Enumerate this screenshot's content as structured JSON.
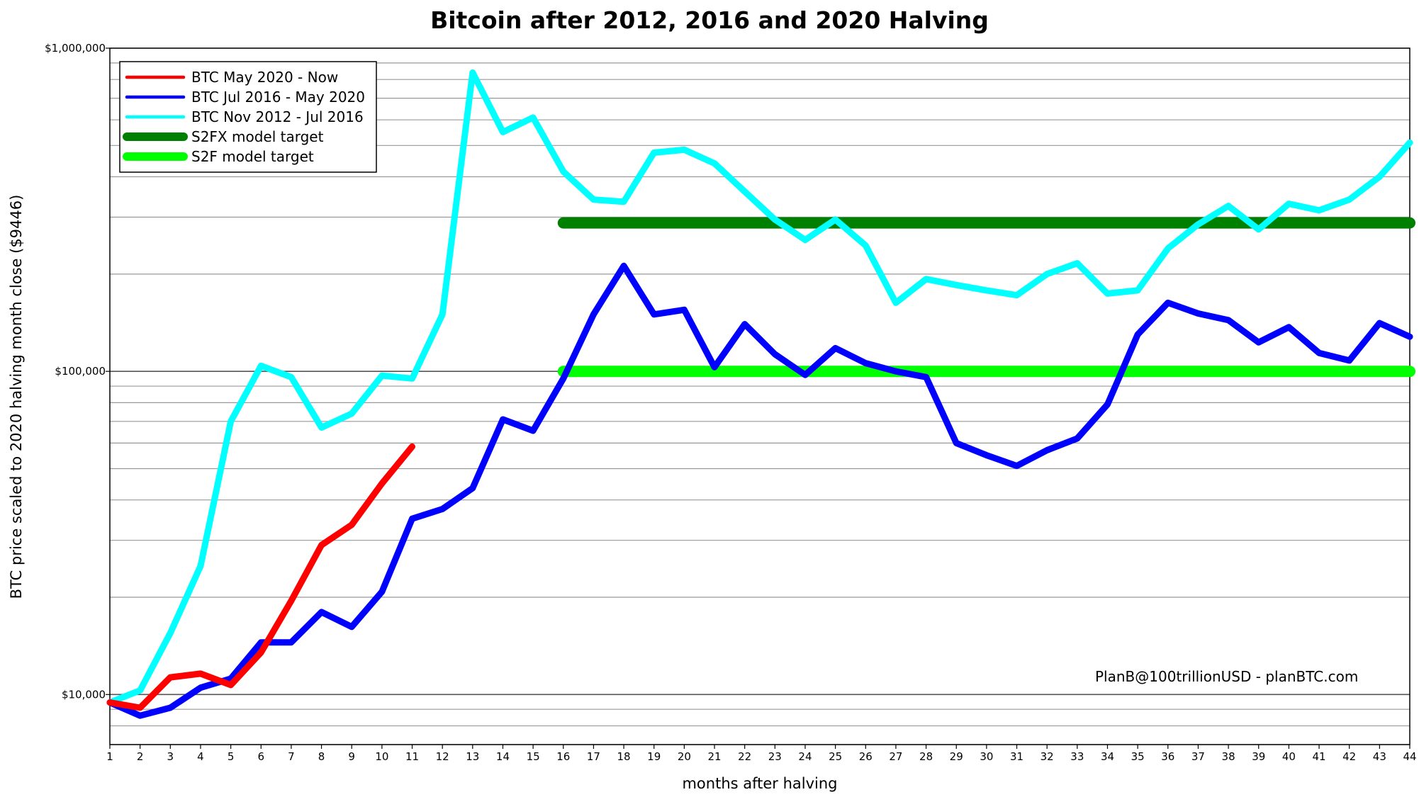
{
  "chart_data": {
    "type": "line",
    "title": "Bitcoin after 2012, 2016 and 2020 Halving",
    "xlabel": "months after halving",
    "ylabel": "BTC price scaled to 2020 halving month close ($9446)",
    "yscale": "log",
    "ylim": [
      7000,
      1000000
    ],
    "xlim": [
      1,
      44
    ],
    "grid": "horizontal",
    "legend_position": "top-left",
    "y_tick_labels": [
      "$10,000",
      "$100,000",
      "$1,000,000"
    ],
    "y_tick_values": [
      10000,
      100000,
      1000000
    ],
    "x_tick_labels": [
      "1",
      "2",
      "3",
      "4",
      "5",
      "6",
      "7",
      "8",
      "9",
      "10",
      "11",
      "12",
      "13",
      "14",
      "15",
      "16",
      "17",
      "18",
      "19",
      "20",
      "21",
      "22",
      "23",
      "24",
      "25",
      "26",
      "27",
      "28",
      "29",
      "30",
      "31",
      "32",
      "33",
      "34",
      "35",
      "36",
      "37",
      "38",
      "39",
      "40",
      "41",
      "42",
      "43",
      "44"
    ],
    "annotation": "PlanB@100trillionUSD  -  planBTC.com",
    "series": [
      {
        "name": "BTC May 2020 - Now",
        "color": "#ff0000",
        "x": [
          1,
          2,
          3,
          4,
          5,
          6,
          7,
          8,
          9,
          10,
          11
        ],
        "values": [
          9446,
          9100,
          11300,
          11600,
          10700,
          13500,
          19500,
          29000,
          33500,
          45000,
          58500
        ]
      },
      {
        "name": "BTC Jul 2016 - May 2020",
        "color": "#0000ff",
        "x": [
          1,
          2,
          3,
          4,
          5,
          6,
          7,
          8,
          9,
          10,
          11,
          12,
          13,
          14,
          15,
          16,
          17,
          18,
          19,
          20,
          21,
          22,
          23,
          24,
          25,
          26,
          27,
          28,
          29,
          30,
          31,
          32,
          33,
          34,
          35,
          36,
          37,
          38,
          39,
          40,
          41,
          42,
          43,
          44
        ],
        "values": [
          9446,
          8600,
          9100,
          10500,
          11200,
          14500,
          14500,
          18000,
          16200,
          20800,
          35000,
          37500,
          43500,
          71000,
          65500,
          95000,
          150000,
          212000,
          150000,
          155000,
          103000,
          140000,
          113000,
          97500,
          118000,
          106000,
          100000,
          96000,
          60000,
          55000,
          51000,
          57000,
          62000,
          79000,
          130000,
          163000,
          151000,
          144000,
          123000,
          137000,
          114000,
          108000,
          141000,
          128000
        ]
      },
      {
        "name": "BTC Nov 2012 - Jul 2016",
        "color": "#00ffff",
        "x": [
          1,
          2,
          3,
          4,
          5,
          6,
          7,
          8,
          9,
          10,
          11,
          12,
          13,
          14,
          15,
          16,
          17,
          18,
          19,
          20,
          21,
          22,
          23,
          24,
          25,
          26,
          27,
          28,
          29,
          30,
          31,
          32,
          33,
          34,
          35,
          36,
          37,
          38,
          39,
          40,
          41,
          42,
          43,
          44
        ],
        "values": [
          9446,
          10300,
          15500,
          25000,
          70000,
          104000,
          96000,
          67000,
          74000,
          97000,
          95000,
          150000,
          840000,
          550000,
          610000,
          415000,
          340000,
          335000,
          475000,
          485000,
          440000,
          360000,
          295000,
          255000,
          295000,
          245000,
          163000,
          193000,
          185000,
          178000,
          172000,
          200000,
          216000,
          174000,
          178000,
          240000,
          285000,
          325000,
          275000,
          330000,
          315000,
          340000,
          400000,
          510000
        ]
      },
      {
        "name": "S2FX model target",
        "color": "#008000",
        "x": [
          16,
          44
        ],
        "values": [
          288000,
          288000
        ]
      },
      {
        "name": "S2F model target",
        "color": "#00ff00",
        "x": [
          16,
          44
        ],
        "values": [
          100000,
          100000
        ]
      }
    ]
  }
}
